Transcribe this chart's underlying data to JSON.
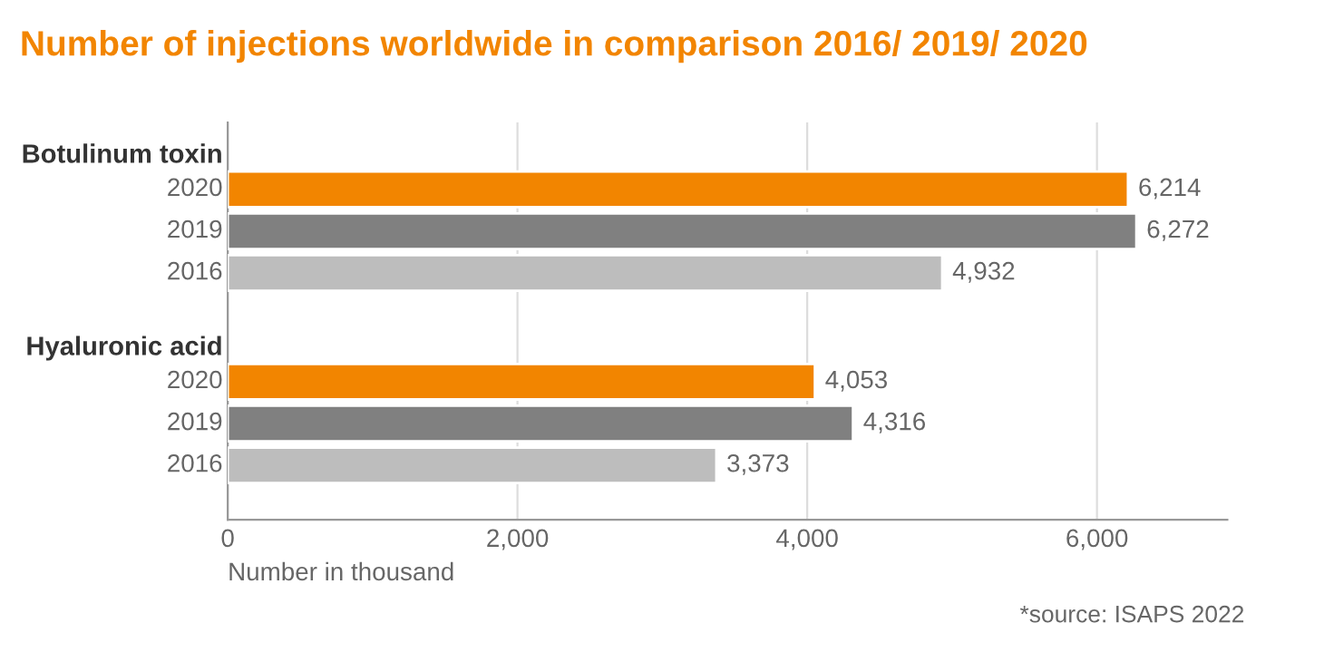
{
  "chart_data": {
    "type": "bar",
    "orientation": "horizontal",
    "title": "Number of injections worldwide in comparison 2016/ 2019/ 2020",
    "categories": [
      "Botulinum toxin",
      "Hyaluronic acid"
    ],
    "series": [
      {
        "name": "2020",
        "color": "#f28500",
        "values": [
          6214,
          4053
        ],
        "value_labels": [
          "6,214",
          "4,053"
        ]
      },
      {
        "name": "2019",
        "color": "#808080",
        "values": [
          6272,
          4316
        ],
        "value_labels": [
          "6,272",
          "4,316"
        ]
      },
      {
        "name": "2016",
        "color": "#bdbdbd",
        "values": [
          4932,
          3373
        ],
        "value_labels": [
          "4,932",
          "3,373"
        ]
      }
    ],
    "xlim": [
      0,
      6900
    ],
    "xticks": [
      0,
      {
        "value": 2000,
        "label": "2,000"
      },
      {
        "value": 4000,
        "label": "4,000"
      },
      {
        "value": 6000,
        "label": "6,000"
      }
    ],
    "xlabel": "Number in thousand",
    "grid": "x",
    "legend": false,
    "tick_labels": "x",
    "annotations": [
      "*source: ISAPS 2022"
    ]
  }
}
